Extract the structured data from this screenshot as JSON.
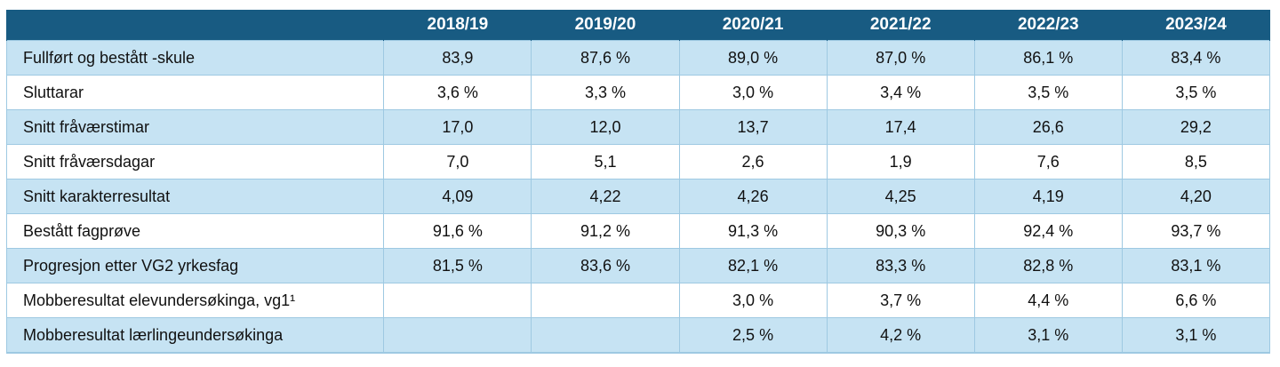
{
  "table": {
    "corner": "",
    "columns": [
      "2018/19",
      "2019/20",
      "2020/21",
      "2021/22",
      "2022/23",
      "2023/24"
    ],
    "rows": [
      {
        "label": "Fullført og bestått -skule",
        "values": [
          "83,9",
          "87,6 %",
          "89,0 %",
          "87,0 %",
          "86,1 %",
          "83,4 %"
        ]
      },
      {
        "label": "Sluttarar",
        "values": [
          "3,6 %",
          "3,3 %",
          "3,0 %",
          "3,4 %",
          "3,5 %",
          "3,5 %"
        ]
      },
      {
        "label": "Snitt fråværstimar",
        "values": [
          "17,0",
          "12,0",
          "13,7",
          "17,4",
          "26,6",
          "29,2"
        ]
      },
      {
        "label": "Snitt fråværsdagar",
        "values": [
          "7,0",
          "5,1",
          "2,6",
          "1,9",
          "7,6",
          "8,5"
        ]
      },
      {
        "label": "Snitt karakterresultat",
        "values": [
          "4,09",
          "4,22",
          "4,26",
          "4,25",
          "4,19",
          "4,20"
        ]
      },
      {
        "label": "Bestått fagprøve",
        "values": [
          "91,6 %",
          "91,2 %",
          "91,3 %",
          "90,3 %",
          "92,4 %",
          "93,7 %"
        ]
      },
      {
        "label": "Progresjon etter VG2 yrkesfag",
        "values": [
          "81,5 %",
          "83,6 %",
          "82,1 %",
          "83,3 %",
          "82,8 %",
          "83,1 %"
        ]
      },
      {
        "label": "Mobberesultat elevundersøkinga, vg1¹",
        "values": [
          "",
          "",
          "3,0 %",
          "3,7 %",
          "4,4 %",
          "6,6 %"
        ]
      },
      {
        "label": "Mobberesultat lærlingeundersøkinga",
        "values": [
          "",
          "",
          "2,5 %",
          "4,2 %",
          "3,1 %",
          "3,1 %"
        ]
      }
    ]
  },
  "colors": {
    "header_bg": "#185b82",
    "header_text": "#ffffff",
    "row_shaded": "#c6e3f3",
    "row_plain": "#ffffff",
    "border": "#9ec9e2"
  }
}
